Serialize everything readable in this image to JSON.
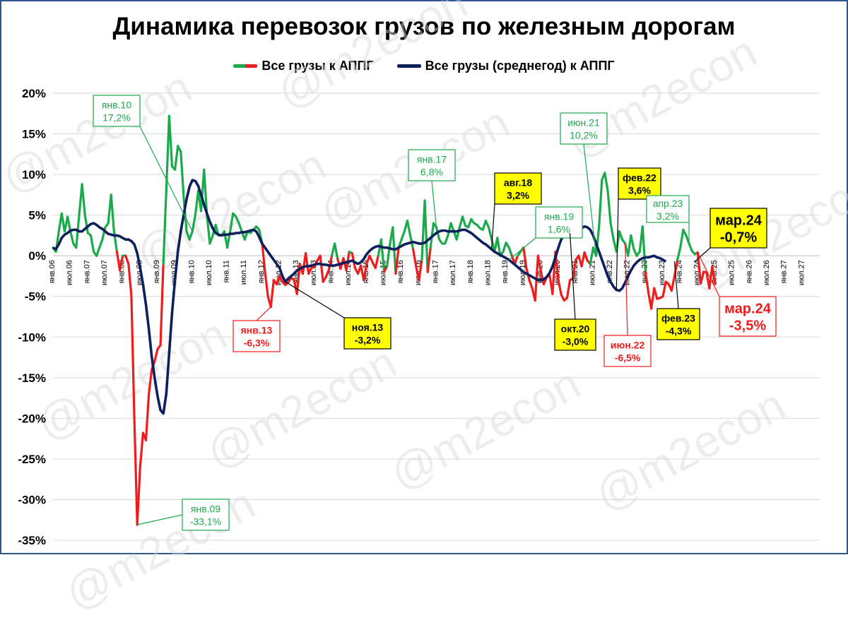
{
  "title": "Динамика перевозок грузов по железным дорогам",
  "watermark": "@m2econ",
  "colors": {
    "frame": "#2f5597",
    "green": "#1aaa4b",
    "red": "#ee1c1c",
    "navy": "#0d1f5c",
    "grid": "#d9d9d9",
    "callout_yellow": "#ffff00"
  },
  "chart_data": {
    "type": "line",
    "ylim": [
      -35,
      20
    ],
    "y_ticks": [
      "20%",
      "15%",
      "10%",
      "5%",
      "0%",
      "-5%",
      "-10%",
      "-15%",
      "-20%",
      "-25%",
      "-30%",
      "-35%"
    ],
    "x_ticks": [
      "янв.06",
      "июл.06",
      "янв.07",
      "июл.07",
      "янв.08",
      "июл.08",
      "янв.09",
      "июл.09",
      "янв.10",
      "июл.10",
      "янв.11",
      "июл.11",
      "янв.12",
      "июл.12",
      "янв.13",
      "июл.13",
      "янв.14",
      "июл.14",
      "янв.15",
      "июл.15",
      "янв.16",
      "июл.16",
      "янв.17",
      "июл.17",
      "янв.18",
      "июл.18",
      "янв.19",
      "июл.19",
      "янв.20",
      "июл.20",
      "янв.21",
      "июл.21",
      "янв.22",
      "июл.22",
      "янв.23",
      "июл.23",
      "янв.24",
      "июл.24",
      "янв.25",
      "июл.25",
      "янв.26",
      "июл.26",
      "янв.27",
      "июл.27"
    ],
    "series": [
      {
        "name": "Все грузы к АППГ",
        "color_positive": "#1aaa4b",
        "color_negative": "#ee1c1c",
        "values": [
          1,
          0.5,
          3,
          5.2,
          3,
          4.8,
          3,
          1.5,
          1,
          5,
          8.8,
          5,
          2.8,
          2.5,
          0.5,
          0,
          1,
          2,
          3.5,
          4,
          7.5,
          3,
          0.5,
          -1.8,
          0,
          0,
          -1,
          -5,
          -20,
          -33.1,
          -26,
          -21.8,
          -22.7,
          -17,
          -14,
          -13,
          -11.5,
          -11,
          -1,
          8,
          17.2,
          11,
          10.6,
          13.5,
          12.8,
          7.2,
          3,
          2,
          3,
          5,
          8,
          5.5,
          10.6,
          5,
          1.5,
          2.5,
          3.8,
          2.5,
          2.5,
          3,
          1,
          3,
          5.2,
          4.8,
          4,
          3,
          2,
          3,
          2.8,
          3.2,
          3.6,
          3.2,
          1.6,
          -2,
          -5,
          -6.3,
          -3,
          -3.5,
          -2.5,
          -3.2,
          -3.6,
          -3.3,
          -2.7,
          -3,
          -4.7,
          -1,
          -2.2,
          0.3,
          -2.2,
          -1.5,
          -1.4,
          -0.6,
          0,
          -3.2,
          -2.6,
          -1.7,
          0,
          1.5,
          -0.4,
          -1.6,
          -0.3,
          -1.8,
          0.5,
          0.3,
          -1.5,
          -2.2,
          -1.2,
          -3,
          -1,
          0,
          -0.8,
          -1.5,
          0,
          2,
          -2,
          -1.3,
          1.4,
          3.5,
          -2.2,
          1,
          2,
          3,
          4.3,
          2.5,
          0.8,
          -1.3,
          -3,
          -0.5,
          6.8,
          -2,
          1,
          4,
          3.5,
          2,
          1.5,
          1.5,
          2.5,
          4,
          3,
          2,
          3.5,
          4.8,
          3.7,
          3.5,
          4.5,
          4,
          3.8,
          3.4,
          3.2,
          4.3,
          3.5,
          2.1,
          0.5,
          2.2,
          0,
          0.5,
          1.6,
          1,
          0,
          -1,
          0,
          0.5,
          1,
          -1.5,
          -3,
          -4,
          -5.5,
          0,
          -2,
          -3.5,
          -2.6,
          -2.4,
          -4.7,
          0.5,
          -3,
          -4.8,
          -5.5,
          -5.2,
          -3,
          -2.8,
          -0.5,
          0,
          -1.3,
          0.4,
          -0.6,
          -1,
          1,
          0,
          3.5,
          9.3,
          10.2,
          8,
          4,
          2,
          0.5,
          3,
          2,
          1.5,
          0,
          2.5,
          0.8,
          0,
          0.5,
          3.6,
          -2,
          -4.5,
          -6.5,
          -4,
          -5.3,
          -5.2,
          -5,
          -3.2,
          -3.5,
          -4.3,
          -2.5,
          -0.5,
          1,
          3.2,
          2.5,
          1.5,
          0.6,
          0.2,
          0.4,
          -3.4,
          -2,
          -2,
          -4,
          -1.3,
          -3.5
        ]
      },
      {
        "name": "Все грузы (среднегод) к АППГ",
        "color": "#0d1f5c",
        "values": [
          1,
          0.8,
          1.4,
          2.2,
          2.6,
          2.8,
          3.1,
          3.2,
          3.2,
          3,
          3,
          3.3,
          3.6,
          3.9,
          4,
          3.8,
          3.5,
          3.3,
          3,
          2.7,
          2.6,
          2.5,
          2.5,
          2.4,
          2.2,
          2,
          2,
          1.8,
          1.4,
          0.3,
          -1.5,
          -3.5,
          -6,
          -9,
          -12.4,
          -15,
          -17.3,
          -19,
          -19.4,
          -17,
          -12,
          -7,
          -3,
          0.5,
          3,
          5,
          7,
          8.5,
          9.3,
          9.2,
          8.6,
          7.5,
          6.3,
          5.2,
          4.2,
          3.4,
          2.8,
          2.6,
          2.5,
          2.6,
          2.6,
          2.7,
          2.7,
          2.8,
          2.8,
          2.9,
          2.9,
          3,
          3.1,
          3.2,
          3,
          2.3,
          1.5,
          1,
          0.5,
          0,
          -0.5,
          -1,
          -1.5,
          -2.5,
          -3.2,
          -2.8,
          -2.5,
          -2.2,
          -1.8,
          -1.6,
          -1.4,
          -1.3,
          -1.3,
          -1.2,
          -1.1,
          -1,
          -1,
          -1.1,
          -1.1,
          -1.2,
          -1.2,
          -1.2,
          -1.1,
          -1,
          -0.9,
          -0.8,
          -0.7,
          -0.6,
          -0.8,
          -1,
          -0.8,
          -0.4,
          0.2,
          0.6,
          0.9,
          1.1,
          1.2,
          1.1,
          1,
          1,
          0.9,
          0.8,
          0.8,
          1,
          1.2,
          1.4,
          1.5,
          1.6,
          1.7,
          1.6,
          1.5,
          1.5,
          1.6,
          1.9,
          2.2,
          2.5,
          2.8,
          3,
          3.1,
          3.1,
          3,
          3,
          3,
          3,
          3.1,
          3.2,
          3.2,
          3,
          2.8,
          2.5,
          2.2,
          1.9,
          1.6,
          1.4,
          1.1,
          0.8,
          0.5,
          0.3,
          0.1,
          -0.1,
          -0.3,
          -0.5,
          -0.8,
          -1.1,
          -1.4,
          -1.7,
          -2,
          -2.2,
          -2.4,
          -2.6,
          -2.8,
          -3,
          -3,
          -2.9,
          -2.6,
          -2.1,
          -1.3,
          -0.2,
          1,
          2,
          2.6,
          2.8,
          2.8,
          2.9,
          3.1,
          3.3,
          3.4,
          3.6,
          3.5,
          3.2,
          2.5,
          1.5,
          0.5,
          -0.5,
          -1.5,
          -2.5,
          -3.2,
          -3.8,
          -4.2,
          -4.3,
          -4,
          -3.3,
          -2.5,
          -1.8,
          -1.2,
          -0.8,
          -0.5,
          -0.3,
          -0.2,
          -0.2,
          -0.1,
          0,
          -0.2,
          -0.3,
          -0.5,
          -0.7
        ]
      }
    ],
    "annotations": [
      {
        "label": "янв.10",
        "value": "17,2%",
        "style": "green"
      },
      {
        "label": "янв.09",
        "value": "-33,1%",
        "style": "green"
      },
      {
        "label": "янв.13",
        "value": "-6,3%",
        "style": "red"
      },
      {
        "label": "ноя.13",
        "value": "-3,2%",
        "style": "yellow"
      },
      {
        "label": "янв.17",
        "value": "6,8%",
        "style": "green"
      },
      {
        "label": "авг.18",
        "value": "3,2%",
        "style": "yellow"
      },
      {
        "label": "янв.19",
        "value": "1,6%",
        "style": "green"
      },
      {
        "label": "окт.20",
        "value": "-3,0%",
        "style": "yellow"
      },
      {
        "label": "июн.21",
        "value": "10,2%",
        "style": "green"
      },
      {
        "label": "фев.22",
        "value": "3,6%",
        "style": "yellow"
      },
      {
        "label": "апр.23",
        "value": "3,2%",
        "style": "green"
      },
      {
        "label": "июн.22",
        "value": "-6,5%",
        "style": "red"
      },
      {
        "label": "фев.23",
        "value": "-4,3%",
        "style": "yellow"
      },
      {
        "label": "мар.24",
        "value": "-0,7%",
        "style": "yellow-big"
      },
      {
        "label": "мар.24",
        "value": "-3,5%",
        "style": "red-big"
      }
    ]
  }
}
